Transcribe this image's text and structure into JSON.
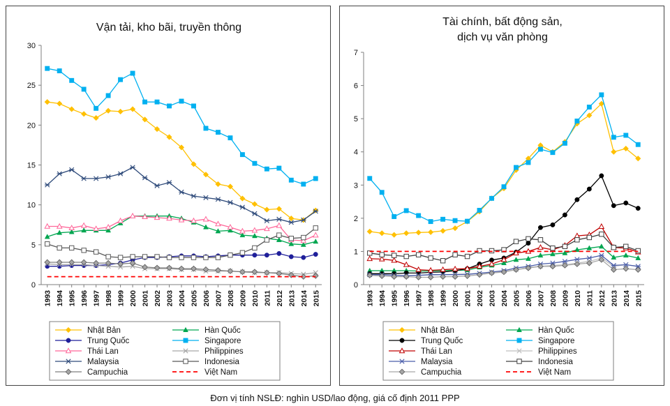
{
  "footer_note": "Đơn vị tính NSLĐ: nghìn USD/lao động, giá cố định 2011 PPP",
  "chart_data": [
    {
      "type": "line",
      "title": "Vận tải, kho bãi, truyền thông",
      "title_lines": [
        "Vận tải, kho bãi, truyền thông"
      ],
      "ylim": [
        0,
        30
      ],
      "yticks": [
        0,
        5,
        10,
        15,
        20,
        25,
        30
      ],
      "categories": [
        "1993",
        "1994",
        "1995",
        "1996",
        "1997",
        "1998",
        "1999",
        "2000",
        "2001",
        "2002",
        "2003",
        "2004",
        "2005",
        "2006",
        "2007",
        "2008",
        "2009",
        "2010",
        "2011",
        "2012",
        "2013",
        "2014",
        "2015"
      ],
      "series": [
        {
          "name": "Nhật Bản",
          "color": "#FFC000",
          "marker": "diamond",
          "values": [
            22.9,
            22.7,
            22,
            21.4,
            20.9,
            21.8,
            21.7,
            22,
            20.7,
            19.5,
            18.5,
            17.2,
            15.1,
            13.8,
            12.6,
            12.3,
            10.8,
            10.1,
            9.4,
            9.5,
            8.3,
            8.1,
            9.3
          ]
        },
        {
          "name": "Hàn Quốc",
          "color": "#00A650",
          "marker": "triangle",
          "values": [
            6,
            6.5,
            6.6,
            6.8,
            6.8,
            6.8,
            7.7,
            8.6,
            8.6,
            8.6,
            8.6,
            8.3,
            7.8,
            7.2,
            6.7,
            6.8,
            6.2,
            6.1,
            5.8,
            5.6,
            5.1,
            5,
            5.4
          ]
        },
        {
          "name": "Trung Quốc",
          "color": "#1F1F9A",
          "marker": "circle",
          "values": [
            2.3,
            2.3,
            2.4,
            2.4,
            2.4,
            2.5,
            2.7,
            3.1,
            3.4,
            3.4,
            3.5,
            3.6,
            3.6,
            3.5,
            3.6,
            3.7,
            3.7,
            3.7,
            3.7,
            3.9,
            3.5,
            3.4,
            3.8
          ]
        },
        {
          "name": "Singapore",
          "color": "#00B0F0",
          "marker": "square",
          "values": [
            27.1,
            26.8,
            25.6,
            24.5,
            22.1,
            23.7,
            25.7,
            26.5,
            22.9,
            22.9,
            22.4,
            23,
            22.4,
            19.6,
            19.1,
            18.4,
            16.3,
            15.2,
            14.5,
            14.6,
            13.1,
            12.6,
            13.3
          ]
        },
        {
          "name": "Thái Lan",
          "color": "#FF6699",
          "marker": "triangle-open",
          "values": [
            7.3,
            7.3,
            7.1,
            7.4,
            7,
            7.2,
            8,
            8.6,
            8.5,
            8.4,
            8.3,
            8.1,
            8,
            8.2,
            7.6,
            7.2,
            6.7,
            6.8,
            7,
            7.4,
            5.6,
            5.5,
            6.2
          ]
        },
        {
          "name": "Philippines",
          "color": "#A6A6A6",
          "marker": "x",
          "values": [
            2.6,
            2.5,
            2.5,
            2.5,
            2.4,
            2.3,
            2.2,
            2.3,
            2,
            2,
            2,
            1.9,
            1.9,
            1.7,
            1.7,
            1.7,
            1.6,
            1.5,
            1.5,
            1.5,
            1.4,
            1.3,
            1.5
          ]
        },
        {
          "name": "Malaysia",
          "color": "#2E4A7A",
          "marker": "star",
          "values": [
            12.5,
            13.9,
            14.4,
            13.3,
            13.3,
            13.5,
            13.9,
            14.7,
            13.4,
            12.4,
            12.8,
            11.6,
            11.1,
            10.9,
            10.7,
            10.3,
            9.7,
            8.9,
            8,
            8.2,
            7.8,
            8.1,
            9.2
          ]
        },
        {
          "name": "Indonesia",
          "color": "#595959",
          "marker": "square-open",
          "values": [
            5.1,
            4.6,
            4.6,
            4.3,
            4.1,
            3.5,
            3.4,
            3.5,
            3.5,
            3.5,
            3.4,
            3.4,
            3.4,
            3.4,
            3.4,
            3.7,
            4,
            4.6,
            5.6,
            6.2,
            5.8,
            5.9,
            7.1
          ]
        },
        {
          "name": "Campuchia",
          "color": "#7F7F7F",
          "marker": "diamond-grey",
          "values": [
            2.8,
            2.8,
            2.8,
            2.8,
            2.7,
            2.7,
            2.6,
            2.7,
            2.2,
            2.1,
            2.1,
            2,
            2,
            1.9,
            1.8,
            1.7,
            1.6,
            1.6,
            1.5,
            1.4,
            1.2,
            1,
            1.1
          ]
        },
        {
          "name": "Việt Nam",
          "color": "#FF0000",
          "marker": "dash",
          "values": [
            1,
            1,
            1,
            1,
            1,
            1,
            1,
            1,
            1,
            1,
            1,
            1,
            1,
            1,
            1,
            1,
            1,
            1,
            1,
            1,
            1,
            1,
            1
          ]
        }
      ]
    },
    {
      "type": "line",
      "title": "Tài chính, bất động sản, dịch vụ văn phòng",
      "title_lines": [
        "Tài chính, bất động sản,",
        "dịch vụ văn phòng"
      ],
      "ylim": [
        0,
        7
      ],
      "yticks": [
        0,
        1,
        2,
        3,
        4,
        5,
        6,
        7
      ],
      "categories": [
        "1993",
        "1994",
        "1995",
        "1996",
        "1997",
        "1998",
        "1999",
        "2000",
        "2001",
        "2002",
        "2003",
        "2004",
        "2005",
        "2006",
        "2007",
        "2008",
        "2009",
        "2010",
        "2011",
        "2012",
        "2013",
        "2014",
        "2015"
      ],
      "series": [
        {
          "name": "Nhật Bản",
          "color": "#FFC000",
          "marker": "diamond",
          "values": [
            1.6,
            1.55,
            1.5,
            1.55,
            1.57,
            1.58,
            1.62,
            1.7,
            1.9,
            2.2,
            2.6,
            2.9,
            3.45,
            3.8,
            4.2,
            4,
            4.3,
            4.85,
            5.1,
            5.45,
            4,
            4.1,
            3.8
          ]
        },
        {
          "name": "Hàn Quốc",
          "color": "#00A650",
          "marker": "triangle",
          "values": [
            0.42,
            0.42,
            0.42,
            0.42,
            0.41,
            0.41,
            0.42,
            0.43,
            0.44,
            0.52,
            0.58,
            0.65,
            0.75,
            0.78,
            0.88,
            0.92,
            0.95,
            1.05,
            1.1,
            1.15,
            0.82,
            0.88,
            0.8
          ]
        },
        {
          "name": "Trung Quốc",
          "color": "#000000",
          "marker": "circle",
          "values": [
            0.33,
            0.33,
            0.33,
            0.35,
            0.35,
            0.37,
            0.38,
            0.42,
            0.48,
            0.62,
            0.74,
            0.8,
            0.98,
            1.25,
            1.72,
            1.8,
            2.1,
            2.56,
            2.88,
            3.28,
            2.38,
            2.46,
            2.3
          ]
        },
        {
          "name": "Singapore",
          "color": "#00B0F0",
          "marker": "square",
          "values": [
            3.2,
            2.78,
            2.05,
            2.23,
            2.08,
            1.9,
            1.97,
            1.93,
            1.91,
            2.24,
            2.6,
            2.95,
            3.53,
            3.68,
            4.08,
            3.98,
            4.26,
            4.93,
            5.35,
            5.72,
            4.44,
            4.5,
            4.22
          ]
        },
        {
          "name": "Thái Lan",
          "color": "#C00000",
          "marker": "triangle-open",
          "values": [
            0.78,
            0.77,
            0.73,
            0.6,
            0.45,
            0.43,
            0.45,
            0.47,
            0.48,
            0.55,
            0.62,
            0.75,
            0.95,
            1,
            1.12,
            1.05,
            1.18,
            1.47,
            1.5,
            1.75,
            1.12,
            1.1,
            0.98
          ]
        },
        {
          "name": "Philippines",
          "color": "#BFBFBF",
          "marker": "x",
          "values": [
            0.3,
            0.29,
            0.28,
            0.27,
            0.28,
            0.29,
            0.3,
            0.31,
            0.32,
            0.34,
            0.37,
            0.4,
            0.45,
            0.52,
            0.55,
            0.58,
            0.6,
            0.65,
            0.7,
            0.8,
            0.55,
            0.6,
            0.55
          ]
        },
        {
          "name": "Malaysia",
          "color": "#4B5EAA",
          "marker": "star",
          "values": [
            0.3,
            0.3,
            0.28,
            0.27,
            0.28,
            0.3,
            0.3,
            0.3,
            0.31,
            0.34,
            0.38,
            0.42,
            0.5,
            0.55,
            0.62,
            0.65,
            0.7,
            0.76,
            0.8,
            0.88,
            0.58,
            0.6,
            0.55
          ]
        },
        {
          "name": "Indonesia",
          "color": "#404040",
          "marker": "square-open",
          "values": [
            0.95,
            0.9,
            0.88,
            0.85,
            0.9,
            0.8,
            0.72,
            0.9,
            0.85,
            1.02,
            1.02,
            1.05,
            1.3,
            1.38,
            1.35,
            1.1,
            1.15,
            1.35,
            1.42,
            1.52,
            1.12,
            1.15,
            1.02
          ]
        },
        {
          "name": "Campuchia",
          "color": "#A6A6A6",
          "marker": "diamond-grey",
          "values": [
            0.28,
            0.26,
            0.24,
            0.24,
            0.22,
            0.22,
            0.24,
            0.24,
            0.26,
            0.3,
            0.35,
            0.38,
            0.45,
            0.5,
            0.55,
            0.55,
            0.58,
            0.62,
            0.65,
            0.75,
            0.45,
            0.48,
            0.45
          ]
        },
        {
          "name": "Việt Nam",
          "color": "#FF0000",
          "marker": "dash",
          "values": [
            1,
            1,
            1,
            1,
            1,
            1,
            1,
            1,
            1,
            1,
            1,
            1,
            1,
            1,
            1,
            1,
            1,
            1,
            1,
            1,
            1,
            1,
            1
          ]
        }
      ]
    }
  ]
}
